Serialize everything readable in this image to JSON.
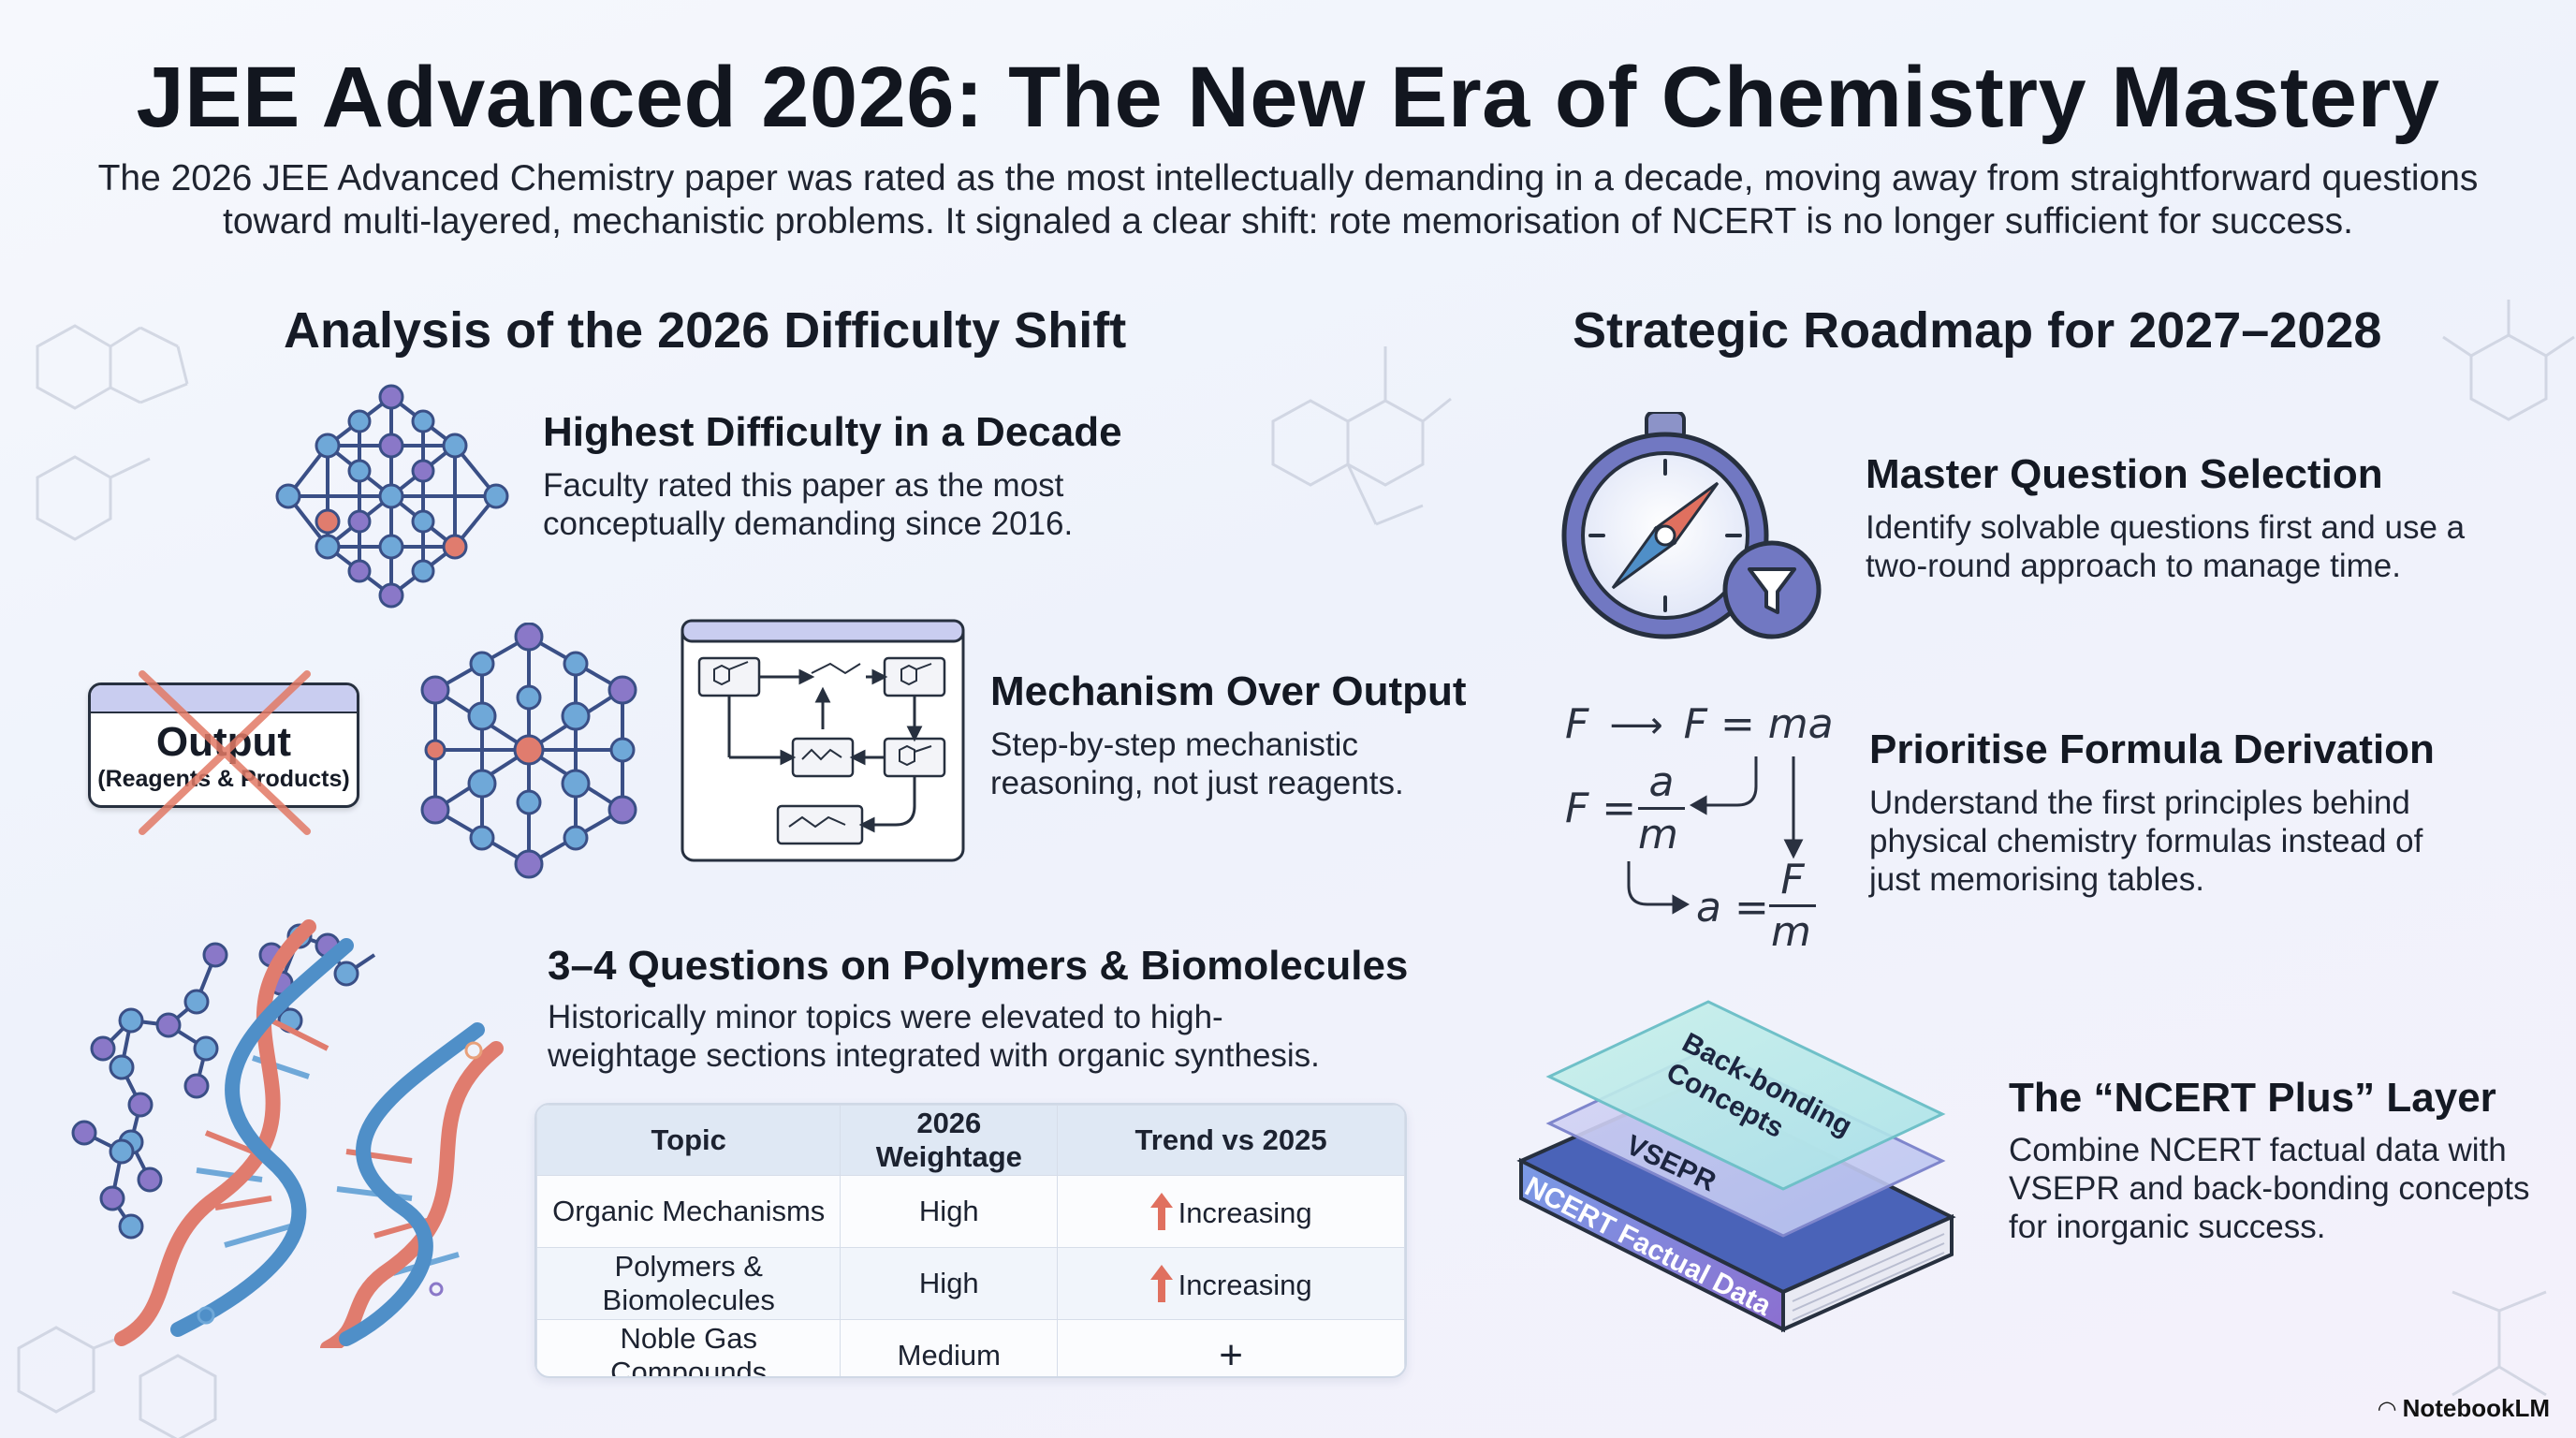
{
  "header": {
    "title": "JEE Advanced 2026: The New Era of Chemistry Mastery",
    "subtitle": "The 2026 JEE Advanced Chemistry paper was rated as the most intellectually demanding in a decade, moving away from straightforward questions toward multi-layered, mechanistic problems. It signaled a clear shift: rote memorisation of NCERT is no longer sufficient for success."
  },
  "left_section": {
    "heading": "Analysis of the 2026 Difficulty Shift",
    "items": [
      {
        "title": "Highest Difficulty in a Decade",
        "desc": "Faculty rated this paper as the most conceptually demanding since 2016.",
        "icon": "molecular-lattice-icon"
      },
      {
        "title": "Mechanism Over Output",
        "desc": "Step-by-step mechanistic reasoning, not just reagents.",
        "icon": "reaction-flowchart-icon",
        "badge_title": "Output",
        "badge_sub": "(Reagents & Products)"
      },
      {
        "title": "3–4 Questions on Polymers & Biomolecules",
        "desc": "Historically minor topics were elevated to high-weightage sections integrated with organic synthesis.",
        "icon": "dna-helix-icon"
      }
    ],
    "table": {
      "headers": [
        "Topic",
        "2026 Weightage",
        "Trend vs 2025"
      ],
      "rows": [
        [
          "Organic Mechanisms",
          "High",
          "Increasing"
        ],
        [
          "Polymers & Biomolecules",
          "High",
          "Increasing"
        ],
        [
          "Noble Gas Compounds",
          "Medium",
          "+"
        ]
      ]
    }
  },
  "right_section": {
    "heading": "Strategic Roadmap for 2027–2028",
    "items": [
      {
        "title": "Master Question Selection",
        "desc": "Identify solvable questions first and use a two-round approach to manage time.",
        "icon": "compass-filter-icon"
      },
      {
        "title": "Prioritise Formula Derivation",
        "desc": "Understand the first principles behind physical chemistry formulas instead of just memorising tables.",
        "icon": "formula-derivation-icon"
      },
      {
        "title": "The “NCERT Plus” Layer",
        "desc": "Combine NCERT factual data with VSEPR and back-bonding concepts for inorganic success.",
        "icon": "layered-book-icon"
      }
    ],
    "formula": {
      "line1_a": "F",
      "line1_b": "F = ma",
      "line2_lhs": "F =",
      "line2_num": "a",
      "line2_den": "m",
      "line3_lhs": "a =",
      "line3_num": "F",
      "line3_den": "m"
    },
    "book_layers": {
      "top": "Back-bonding Concepts",
      "middle": "VSEPR",
      "book": "NCERT Factual Data"
    }
  },
  "footer": {
    "brand": "NotebookLM"
  },
  "colors": {
    "node_blue": "#6fa8d8",
    "node_purple": "#8a78c8",
    "node_red": "#e07c6e",
    "edge": "#3a4f86",
    "accent_red": "#e0705f",
    "table_header": "#dfe8f4"
  }
}
